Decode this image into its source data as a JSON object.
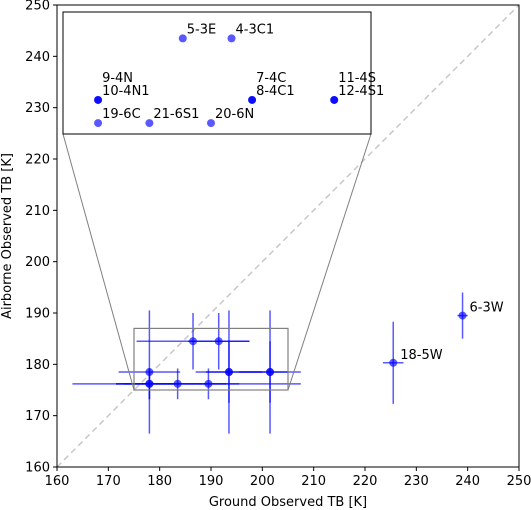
{
  "chart_data": {
    "type": "scatter",
    "title": "",
    "xlabel": "Ground Observed TB [K]",
    "ylabel": "Airborne Observed TB [K]",
    "xlim": [
      160,
      250
    ],
    "ylim": [
      160,
      250
    ],
    "xticks": [
      160,
      170,
      180,
      190,
      200,
      210,
      220,
      230,
      240,
      250
    ],
    "yticks": [
      160,
      170,
      180,
      190,
      200,
      210,
      220,
      230,
      240,
      250
    ],
    "grid": false,
    "one_to_one_line": true,
    "colors": {
      "points": "#0000ff",
      "one_to_one": "#c8c8c8",
      "inset_frame": "#808080"
    },
    "points": [
      {
        "x": 186.5,
        "y": 184.5,
        "xerr": 11.0,
        "yerr": 5.5
      },
      {
        "x": 191.5,
        "y": 184.5,
        "xerr": 6.0,
        "yerr": 5.5
      },
      {
        "x": 178.0,
        "y": 178.5,
        "xerr": 6.0,
        "yerr": 12.0
      },
      {
        "x": 193.5,
        "y": 178.5,
        "xerr": 4.5,
        "yerr": 6.0
      },
      {
        "x": 193.5,
        "y": 178.5,
        "xerr": 6.5,
        "yerr": 12.0
      },
      {
        "x": 201.5,
        "y": 178.5,
        "xerr": 3.5,
        "yerr": 6.0
      },
      {
        "x": 201.5,
        "y": 178.5,
        "xerr": 6.0,
        "yerr": 12.0
      },
      {
        "x": 178.0,
        "y": 176.2,
        "xerr": 15.0,
        "yerr": 3.0
      },
      {
        "x": 183.5,
        "y": 176.2,
        "xerr": 12.0,
        "yerr": 3.0
      },
      {
        "x": 189.5,
        "y": 176.2,
        "xerr": 18.0,
        "yerr": 3.0
      },
      {
        "x": 178.0,
        "y": 176.2,
        "xerr": 5.0,
        "yerr": 3.0
      },
      {
        "x": 225.5,
        "y": 180.3,
        "xerr": 2.0,
        "yerr": 8.0,
        "label": "18-5W"
      },
      {
        "x": 239.0,
        "y": 189.5,
        "xerr": 1.0,
        "yerr": 4.5,
        "label": "6-3W"
      }
    ],
    "inset": {
      "zoom_xlim": [
        175,
        205
      ],
      "zoom_ylim": [
        175,
        187
      ],
      "points": [
        {
          "x": 184.5,
          "y": 243.5,
          "label": "5-3E"
        },
        {
          "x": 194.0,
          "y": 243.5,
          "label": "4-3C1"
        },
        {
          "x": 168.0,
          "y": 231.5,
          "labels": [
            "9-4N",
            "10-4N1"
          ]
        },
        {
          "x": 198.0,
          "y": 231.5,
          "labels": [
            "7-4C",
            "8-4C1"
          ]
        },
        {
          "x": 214.0,
          "y": 231.5,
          "labels": [
            "11-4S",
            "12-4S1"
          ]
        },
        {
          "x": 168.0,
          "y": 227.0,
          "label": "19-6C"
        },
        {
          "x": 178.0,
          "y": 227.0,
          "label": "21-6S1"
        },
        {
          "x": 190.0,
          "y": 227.0,
          "label": "20-6N"
        }
      ]
    }
  }
}
